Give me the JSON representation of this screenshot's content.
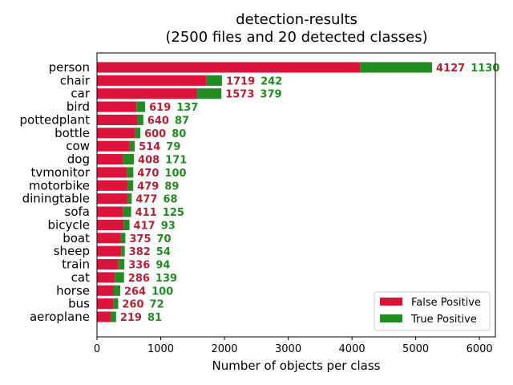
{
  "chart_data": {
    "type": "bar",
    "orientation": "horizontal",
    "stacked": true,
    "title": "detection-results",
    "subtitle": "(2500 files and 20 detected classes)",
    "xlabel": "Number of objects per class",
    "ylabel": "",
    "xlim": [
      0,
      6250
    ],
    "xticks": [
      0,
      1000,
      2000,
      3000,
      4000,
      5000,
      6000
    ],
    "grid": false,
    "legend_position": "lower-right",
    "categories": [
      "person",
      "chair",
      "car",
      "bird",
      "pottedplant",
      "bottle",
      "cow",
      "dog",
      "tvmonitor",
      "motorbike",
      "diningtable",
      "sofa",
      "bicycle",
      "boat",
      "sheep",
      "train",
      "cat",
      "horse",
      "bus",
      "aeroplane"
    ],
    "series": [
      {
        "name": "False Positive",
        "color": "#dc143c",
        "label_color": "#b22234",
        "values": [
          4127,
          1719,
          1573,
          619,
          640,
          600,
          514,
          408,
          470,
          479,
          477,
          411,
          417,
          375,
          382,
          336,
          286,
          264,
          260,
          219
        ]
      },
      {
        "name": "True Positive",
        "color": "#228b22",
        "label_color": "#228b22",
        "values": [
          1130,
          242,
          379,
          137,
          87,
          80,
          79,
          171,
          100,
          89,
          68,
          125,
          93,
          70,
          54,
          94,
          139,
          100,
          72,
          81
        ]
      }
    ]
  }
}
